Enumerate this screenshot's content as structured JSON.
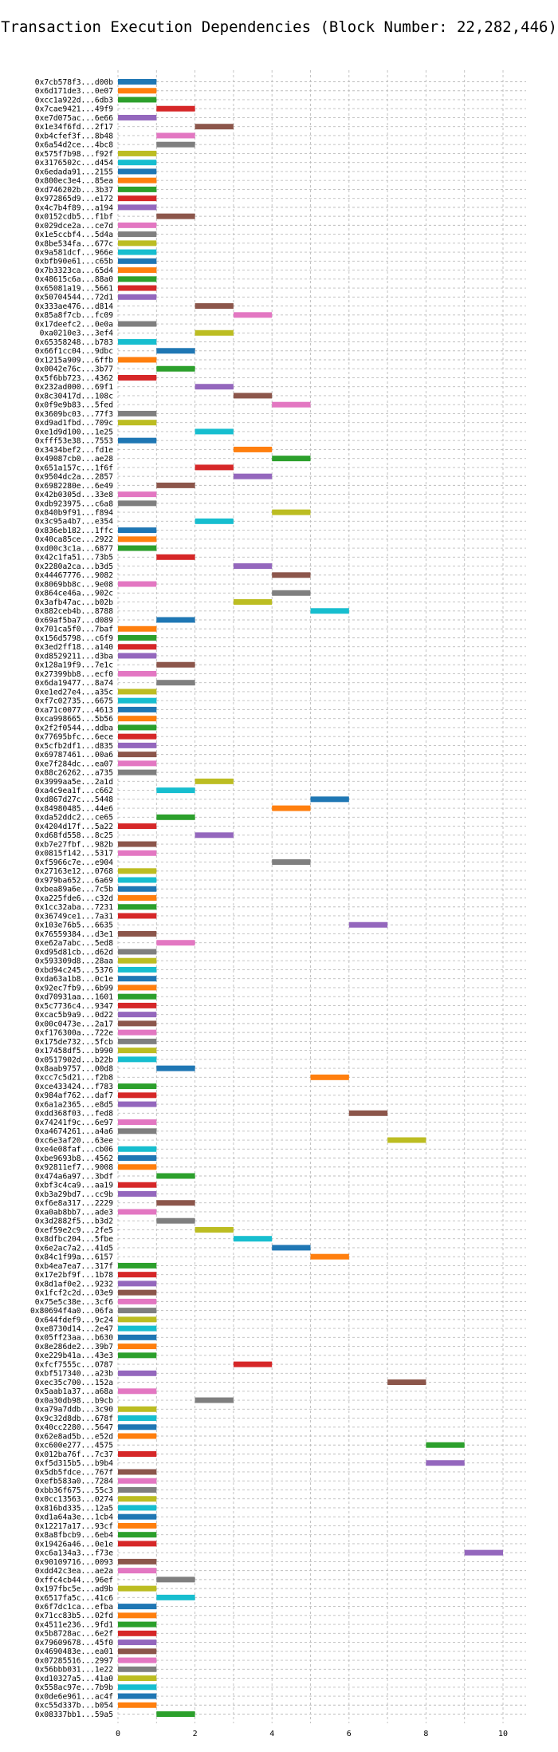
{
  "chart_data": {
    "type": "bar",
    "orientation": "horizontal-gantt",
    "title": "Transaction Execution Dependencies (Block Number: 22,282,446)",
    "xlabel": "",
    "ylabel": "",
    "xlim": [
      0,
      10.6
    ],
    "xticks": [
      0,
      2,
      4,
      6,
      8,
      10
    ],
    "grid": true,
    "colors": [
      "#1f77b4",
      "#ff7f0e",
      "#2ca02c",
      "#d62728",
      "#9467bd",
      "#8c564b",
      "#e377c2",
      "#7f7f7f",
      "#bcbd22",
      "#17becf"
    ],
    "transactions": [
      {
        "label": "0x7cb578f3...d00b",
        "start": 0,
        "end": 1
      },
      {
        "label": "0x6d171de3...0e07",
        "start": 0,
        "end": 1
      },
      {
        "label": "0xcc1a922d...6db3",
        "start": 0,
        "end": 1
      },
      {
        "label": "0x7cae9421...49f9",
        "start": 1,
        "end": 2
      },
      {
        "label": "0xe7d075ac...6e66",
        "start": 0,
        "end": 1
      },
      {
        "label": "0x1e34f6fd...2f17",
        "start": 2,
        "end": 3
      },
      {
        "label": "0xb4cfef3f...8b48",
        "start": 1,
        "end": 2
      },
      {
        "label": "0x6a54d2ce...4bc8",
        "start": 1,
        "end": 2
      },
      {
        "label": "0x575f7b98...f92f",
        "start": 0,
        "end": 1
      },
      {
        "label": "0x3176502c...d454",
        "start": 0,
        "end": 1
      },
      {
        "label": "0x6edada91...2155",
        "start": 0,
        "end": 1
      },
      {
        "label": "0x800ec3e4...85ea",
        "start": 0,
        "end": 1
      },
      {
        "label": "0xd746202b...3b37",
        "start": 0,
        "end": 1
      },
      {
        "label": "0x972865d9...e172",
        "start": 0,
        "end": 1
      },
      {
        "label": "0x4c7b4f89...a194",
        "start": 0,
        "end": 1
      },
      {
        "label": "0x0152cdb5...f1bf",
        "start": 1,
        "end": 2
      },
      {
        "label": "0x029dce2a...ce7d",
        "start": 0,
        "end": 1
      },
      {
        "label": "0x1e5ccbf4...5d4a",
        "start": 0,
        "end": 1
      },
      {
        "label": "0x8be534fa...677c",
        "start": 0,
        "end": 1
      },
      {
        "label": "0x9a581dcf...966e",
        "start": 0,
        "end": 1
      },
      {
        "label": "0xbfb90e61...c65b",
        "start": 0,
        "end": 1
      },
      {
        "label": "0x7b3323ca...65d4",
        "start": 0,
        "end": 1
      },
      {
        "label": "0x48615c6a...88a0",
        "start": 0,
        "end": 1
      },
      {
        "label": "0x65081a19...5661",
        "start": 0,
        "end": 1
      },
      {
        "label": "0x50704544...72d1",
        "start": 0,
        "end": 1
      },
      {
        "label": "0x333ae476...d814",
        "start": 2,
        "end": 3
      },
      {
        "label": "0x85a8f7cb...fc09",
        "start": 3,
        "end": 4
      },
      {
        "label": "0x17deefc2...0e0a",
        "start": 0,
        "end": 1
      },
      {
        "label": "0xa0210e3...3ef4",
        "start": 2,
        "end": 3
      },
      {
        "label": "0x65358248...b783",
        "start": 0,
        "end": 1
      },
      {
        "label": "0x66f1cc04...9dbc",
        "start": 1,
        "end": 2
      },
      {
        "label": "0x1215a909...6ffb",
        "start": 0,
        "end": 1
      },
      {
        "label": "0x0042e76c...3b77",
        "start": 1,
        "end": 2
      },
      {
        "label": "0x5f6bb723...4362",
        "start": 0,
        "end": 1
      },
      {
        "label": "0x232ad000...69f1",
        "start": 2,
        "end": 3
      },
      {
        "label": "0x8c30417d...108c",
        "start": 3,
        "end": 4
      },
      {
        "label": "0x0f9e9b83...5fed",
        "start": 4,
        "end": 5
      },
      {
        "label": "0x3609bc03...77f3",
        "start": 0,
        "end": 1
      },
      {
        "label": "0xd9ad1fbd...709c",
        "start": 0,
        "end": 1
      },
      {
        "label": "0xe1d9d100...1e25",
        "start": 2,
        "end": 3
      },
      {
        "label": "0xfff53e38...7553",
        "start": 0,
        "end": 1
      },
      {
        "label": "0x3434bef2...fd1e",
        "start": 3,
        "end": 4
      },
      {
        "label": "0x49087cb0...ae28",
        "start": 4,
        "end": 5
      },
      {
        "label": "0x651a157c...1f6f",
        "start": 2,
        "end": 3
      },
      {
        "label": "0x9504dc2a...2857",
        "start": 3,
        "end": 4
      },
      {
        "label": "0x6982280e...6e49",
        "start": 1,
        "end": 2
      },
      {
        "label": "0x42b0305d...33e8",
        "start": 0,
        "end": 1
      },
      {
        "label": "0xdb923975...c6a8",
        "start": 0,
        "end": 1
      },
      {
        "label": "0x840b9f91...f894",
        "start": 4,
        "end": 5
      },
      {
        "label": "0x3c95a4b7...e354",
        "start": 2,
        "end": 3
      },
      {
        "label": "0x836eb182...1ffc",
        "start": 0,
        "end": 1
      },
      {
        "label": "0x40ca85ce...2922",
        "start": 0,
        "end": 1
      },
      {
        "label": "0xd00c3c1a...6877",
        "start": 0,
        "end": 1
      },
      {
        "label": "0x42c1fa51...73b5",
        "start": 1,
        "end": 2
      },
      {
        "label": "0x2280a2ca...b3d5",
        "start": 3,
        "end": 4
      },
      {
        "label": "0x44467776...9082",
        "start": 4,
        "end": 5
      },
      {
        "label": "0x8069bb8c...9e08",
        "start": 0,
        "end": 1
      },
      {
        "label": "0x864ce46a...902c",
        "start": 4,
        "end": 5
      },
      {
        "label": "0x3afb47ac...b02b",
        "start": 3,
        "end": 4
      },
      {
        "label": "0x882ceb4b...8788",
        "start": 5,
        "end": 6
      },
      {
        "label": "0x69af5ba7...d089",
        "start": 1,
        "end": 2
      },
      {
        "label": "0x701ca5f0...7baf",
        "start": 0,
        "end": 1
      },
      {
        "label": "0x156d5798...c6f9",
        "start": 0,
        "end": 1
      },
      {
        "label": "0x3ed2ff18...a140",
        "start": 0,
        "end": 1
      },
      {
        "label": "0xd8529211...d3ba",
        "start": 0,
        "end": 1
      },
      {
        "label": "0x128a19f9...7e1c",
        "start": 1,
        "end": 2
      },
      {
        "label": "0x27399bb8...ecf0",
        "start": 0,
        "end": 1
      },
      {
        "label": "0x6da19477...8a74",
        "start": 1,
        "end": 2
      },
      {
        "label": "0xe1ed27e4...a35c",
        "start": 0,
        "end": 1
      },
      {
        "label": "0xf7c02735...6675",
        "start": 0,
        "end": 1
      },
      {
        "label": "0xa71c0077...4613",
        "start": 0,
        "end": 1
      },
      {
        "label": "0xca998665...5b56",
        "start": 0,
        "end": 1
      },
      {
        "label": "0x2f2f0544...ddba",
        "start": 0,
        "end": 1
      },
      {
        "label": "0x77695bfc...6ece",
        "start": 0,
        "end": 1
      },
      {
        "label": "0x5cfb2df1...d835",
        "start": 0,
        "end": 1
      },
      {
        "label": "0x69787461...00a6",
        "start": 0,
        "end": 1
      },
      {
        "label": "0xe7f284dc...ea07",
        "start": 0,
        "end": 1
      },
      {
        "label": "0x88c26262...a735",
        "start": 0,
        "end": 1
      },
      {
        "label": "0x3999aa5e...2a1d",
        "start": 2,
        "end": 3
      },
      {
        "label": "0xa4c9ea1f...c662",
        "start": 1,
        "end": 2
      },
      {
        "label": "0xd867d27c...5448",
        "start": 5,
        "end": 6
      },
      {
        "label": "0x84980485...44e6",
        "start": 4,
        "end": 5
      },
      {
        "label": "0xda52ddc2...ce65",
        "start": 1,
        "end": 2
      },
      {
        "label": "0x4204d17f...5a22",
        "start": 0,
        "end": 1
      },
      {
        "label": "0xd68fd558...8c25",
        "start": 2,
        "end": 3
      },
      {
        "label": "0xb7e27fbf...982b",
        "start": 0,
        "end": 1
      },
      {
        "label": "0x0815f142...5317",
        "start": 0,
        "end": 1
      },
      {
        "label": "0xf5966c7e...e904",
        "start": 4,
        "end": 5
      },
      {
        "label": "0x27163e12...0768",
        "start": 0,
        "end": 1
      },
      {
        "label": "0x979ba652...6a69",
        "start": 0,
        "end": 1
      },
      {
        "label": "0xbea89a6e...7c5b",
        "start": 0,
        "end": 1
      },
      {
        "label": "0xa225fde6...c32d",
        "start": 0,
        "end": 1
      },
      {
        "label": "0x1cc32aba...7231",
        "start": 0,
        "end": 1
      },
      {
        "label": "0x36749ce1...7a31",
        "start": 0,
        "end": 1
      },
      {
        "label": "0x103e76b5...6635",
        "start": 6,
        "end": 7
      },
      {
        "label": "0x76559384...d3e1",
        "start": 0,
        "end": 1
      },
      {
        "label": "0xe62a7abc...5ed8",
        "start": 1,
        "end": 2
      },
      {
        "label": "0xd95d81cb...d62d",
        "start": 0,
        "end": 1
      },
      {
        "label": "0x593309d8...28aa",
        "start": 0,
        "end": 1
      },
      {
        "label": "0xbd94c245...5376",
        "start": 0,
        "end": 1
      },
      {
        "label": "0xda63a1b8...0c1e",
        "start": 0,
        "end": 1
      },
      {
        "label": "0x92ec7fb9...6b99",
        "start": 0,
        "end": 1
      },
      {
        "label": "0xd70931aa...1601",
        "start": 0,
        "end": 1
      },
      {
        "label": "0x5c7736c4...9347",
        "start": 0,
        "end": 1
      },
      {
        "label": "0xcac5b9a9...0d22",
        "start": 0,
        "end": 1
      },
      {
        "label": "0x00c0473e...2a17",
        "start": 0,
        "end": 1
      },
      {
        "label": "0xf176300a...722e",
        "start": 0,
        "end": 1
      },
      {
        "label": "0x175de732...5fcb",
        "start": 0,
        "end": 1
      },
      {
        "label": "0x17458df5...b990",
        "start": 0,
        "end": 1
      },
      {
        "label": "0x0517902d...b22b",
        "start": 0,
        "end": 1
      },
      {
        "label": "0x8aab9757...00d8",
        "start": 1,
        "end": 2
      },
      {
        "label": "0xcc7c5d21...f2b8",
        "start": 5,
        "end": 6
      },
      {
        "label": "0xce433424...f783",
        "start": 0,
        "end": 1
      },
      {
        "label": "0x984af762...daf7",
        "start": 0,
        "end": 1
      },
      {
        "label": "0x6a1a2365...e8d5",
        "start": 0,
        "end": 1
      },
      {
        "label": "0xdd368f03...fed8",
        "start": 6,
        "end": 7
      },
      {
        "label": "0x74241f9c...6e97",
        "start": 0,
        "end": 1
      },
      {
        "label": "0xa4674261...a4a6",
        "start": 0,
        "end": 1
      },
      {
        "label": "0xc6e3af20...63ee",
        "start": 7,
        "end": 8
      },
      {
        "label": "0xe4e08faf...cb06",
        "start": 0,
        "end": 1
      },
      {
        "label": "0xbe9693b8...4562",
        "start": 0,
        "end": 1
      },
      {
        "label": "0x92811ef7...9008",
        "start": 0,
        "end": 1
      },
      {
        "label": "0x474a6a97...3bdf",
        "start": 1,
        "end": 2
      },
      {
        "label": "0xbf3c4ca9...aa19",
        "start": 0,
        "end": 1
      },
      {
        "label": "0xb3a29bd7...cc9b",
        "start": 0,
        "end": 1
      },
      {
        "label": "0xf6e8a317...2229",
        "start": 1,
        "end": 2
      },
      {
        "label": "0xa0ab8bb7...ade3",
        "start": 0,
        "end": 1
      },
      {
        "label": "0x3d2882f5...b3d2",
        "start": 1,
        "end": 2
      },
      {
        "label": "0xef59e2c9...2fe5",
        "start": 2,
        "end": 3
      },
      {
        "label": "0x8dfbc204...5fbe",
        "start": 3,
        "end": 4
      },
      {
        "label": "0x6e2ac7a2...41d5",
        "start": 4,
        "end": 5
      },
      {
        "label": "0x84c1f99a...6157",
        "start": 5,
        "end": 6
      },
      {
        "label": "0xb4ea7ea7...317f",
        "start": 0,
        "end": 1
      },
      {
        "label": "0x17e2bf9f...1b78",
        "start": 0,
        "end": 1
      },
      {
        "label": "0x8d1af0e2...9232",
        "start": 0,
        "end": 1
      },
      {
        "label": "0x1fcf2c2d...03e9",
        "start": 0,
        "end": 1
      },
      {
        "label": "0x75e5c38e...3cf6",
        "start": 0,
        "end": 1
      },
      {
        "label": "0x80694f4a0...06fa",
        "start": 0,
        "end": 1
      },
      {
        "label": "0x644fdef9...9c24",
        "start": 0,
        "end": 1
      },
      {
        "label": "0xe8730d14...2e47",
        "start": 0,
        "end": 1
      },
      {
        "label": "0x05ff23aa...b630",
        "start": 0,
        "end": 1
      },
      {
        "label": "0x8e286de2...39b7",
        "start": 0,
        "end": 1
      },
      {
        "label": "0xe229b41a...43e3",
        "start": 0,
        "end": 1
      },
      {
        "label": "0xfcf7555c...0787",
        "start": 3,
        "end": 4
      },
      {
        "label": "0xbf517340...a23b",
        "start": 0,
        "end": 1
      },
      {
        "label": "0xec35c700...152a",
        "start": 7,
        "end": 8
      },
      {
        "label": "0x5aab1a37...a68a",
        "start": 0,
        "end": 1
      },
      {
        "label": "0x0a30db98...b9cb",
        "start": 2,
        "end": 3
      },
      {
        "label": "0xa79a7ddb...3c90",
        "start": 0,
        "end": 1
      },
      {
        "label": "0x9c32d8db...678f",
        "start": 0,
        "end": 1
      },
      {
        "label": "0x40cc2280...5647",
        "start": 0,
        "end": 1
      },
      {
        "label": "0x62e8ad5b...e52d",
        "start": 0,
        "end": 1
      },
      {
        "label": "0xc600e277...4575",
        "start": 8,
        "end": 9
      },
      {
        "label": "0x012ba76f...7c37",
        "start": 0,
        "end": 1
      },
      {
        "label": "0xf5d315b5...b9b4",
        "start": 8,
        "end": 9
      },
      {
        "label": "0x5db5fdce...767f",
        "start": 0,
        "end": 1
      },
      {
        "label": "0xefb583a0...7284",
        "start": 0,
        "end": 1
      },
      {
        "label": "0xbb36f675...55c3",
        "start": 0,
        "end": 1
      },
      {
        "label": "0x0cc13563...0274",
        "start": 0,
        "end": 1
      },
      {
        "label": "0x816bd335...12a5",
        "start": 0,
        "end": 1
      },
      {
        "label": "0xd1a64a3e...1cb4",
        "start": 0,
        "end": 1
      },
      {
        "label": "0x12217a17...93cf",
        "start": 0,
        "end": 1
      },
      {
        "label": "0x8a8fbcb9...6eb4",
        "start": 0,
        "end": 1
      },
      {
        "label": "0x19426a46...0e1e",
        "start": 0,
        "end": 1
      },
      {
        "label": "0xc6a134a3...f73e",
        "start": 9,
        "end": 10
      },
      {
        "label": "0x90109716...0093",
        "start": 0,
        "end": 1
      },
      {
        "label": "0xdd42c3ea...ae2a",
        "start": 0,
        "end": 1
      },
      {
        "label": "0xffc4cb44...96ef",
        "start": 1,
        "end": 2
      },
      {
        "label": "0x197fbc5e...ad9b",
        "start": 0,
        "end": 1
      },
      {
        "label": "0x6517fa5c...41c6",
        "start": 1,
        "end": 2
      },
      {
        "label": "0x6f7dc1ca...efba",
        "start": 0,
        "end": 1
      },
      {
        "label": "0x71cc83b5...02fd",
        "start": 0,
        "end": 1
      },
      {
        "label": "0x4511e236...9fd1",
        "start": 0,
        "end": 1
      },
      {
        "label": "0x5b8728ac...6e2f",
        "start": 0,
        "end": 1
      },
      {
        "label": "0x79609678...45f0",
        "start": 0,
        "end": 1
      },
      {
        "label": "0x4690483e...ea01",
        "start": 0,
        "end": 1
      },
      {
        "label": "0x07285516...2997",
        "start": 0,
        "end": 1
      },
      {
        "label": "0x56bbb031...1e22",
        "start": 0,
        "end": 1
      },
      {
        "label": "0xd10327a5...41a0",
        "start": 0,
        "end": 1
      },
      {
        "label": "0x558ac97e...7b9b",
        "start": 0,
        "end": 1
      },
      {
        "label": "0x0de6e961...ac4f",
        "start": 0,
        "end": 1
      },
      {
        "label": "0xc55d337b...b054",
        "start": 0,
        "end": 1
      },
      {
        "label": "0x08337bb1...59a5",
        "start": 1,
        "end": 2
      }
    ]
  }
}
